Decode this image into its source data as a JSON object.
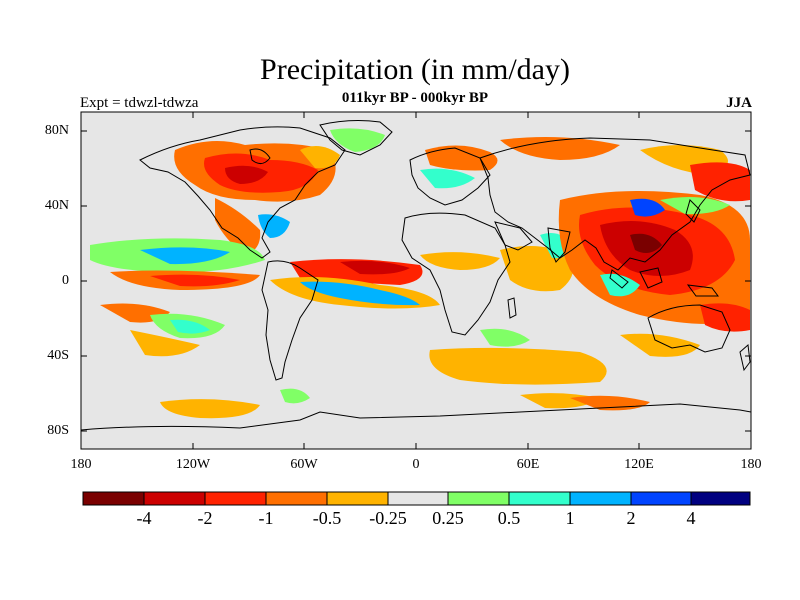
{
  "title": "Precipitation (in mm/day)",
  "subtitle": "011kyr BP - 000kyr BP",
  "experiment": "Expt = tdwzl-tdwza",
  "season": "JJA",
  "lat_ticks": [
    "80N",
    "40N",
    "0",
    "40S",
    "80S"
  ],
  "lon_ticks": [
    "180",
    "120W",
    "60W",
    "0",
    "60E",
    "120E",
    "180"
  ],
  "colorbar": {
    "labels": [
      "-4",
      "-2",
      "-1",
      "-0.5",
      "-0.25",
      "0.25",
      "0.5",
      "1",
      "2",
      "4"
    ],
    "colors": [
      "#7a0000",
      "#cc0000",
      "#ff2200",
      "#ff6f00",
      "#ffb300",
      "#e6e6e6",
      "#80ff66",
      "#33ffcc",
      "#00b3ff",
      "#0044ff",
      "#000080"
    ]
  },
  "colors": {
    "land_outline": "#000000",
    "background": "#e6e6e6"
  }
}
